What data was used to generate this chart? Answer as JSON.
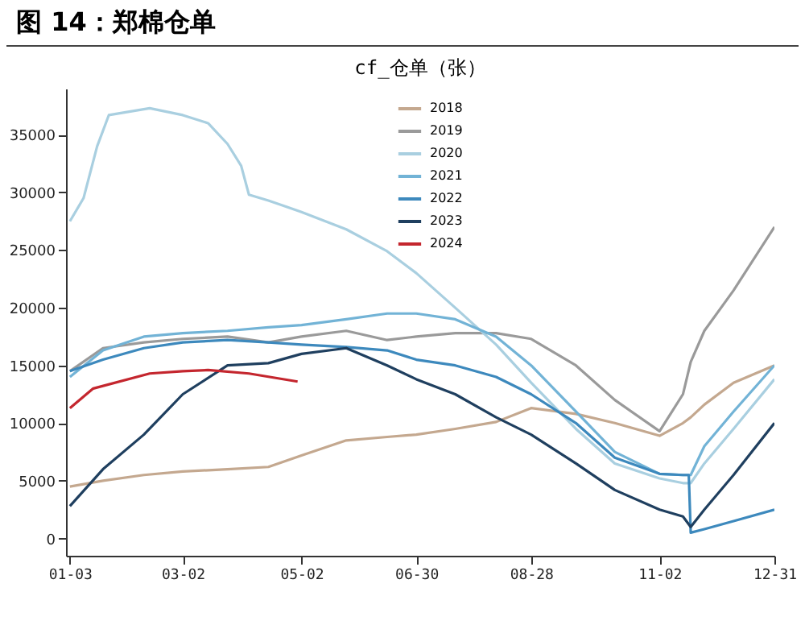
{
  "chart_data": {
    "type": "line",
    "title": "图 14：郑棉仓单",
    "subtitle": "cf_仓单（张）",
    "x": [
      "--01-03",
      "--01-20",
      "--02-10",
      "--03-02",
      "--03-25",
      "--04-15",
      "--05-02",
      "--05-25",
      "--06-15",
      "--06-30",
      "--07-20",
      "--08-10",
      "--08-28",
      "--09-20",
      "--10-10",
      "--11-02",
      "--11-14",
      "--11-18",
      "--11-25",
      "--12-10",
      "--12-31"
    ],
    "series": [
      {
        "name": "2018",
        "color": "#c4a88f",
        "values": [
          4500,
          5000,
          5500,
          5800,
          6000,
          6200,
          7200,
          8500,
          8800,
          9000,
          9500,
          10100,
          11300,
          10800,
          10000,
          8900,
          10000,
          10500,
          11600,
          13500,
          15000
        ]
      },
      {
        "name": "2019",
        "color": "#9a9a9a",
        "values": [
          14500,
          16500,
          17000,
          17300,
          17500,
          17000,
          17500,
          18000,
          17200,
          17500,
          17800,
          17800,
          17300,
          15000,
          12000,
          9300,
          12500,
          15300,
          18000,
          21500,
          27000
        ]
      },
      {
        "name": "2020",
        "color": "#a9cfe0",
        "x": [
          "--01-03",
          "--01-10",
          "--01-17",
          "--01-23",
          "--02-13",
          "--03-02",
          "--03-15",
          "--03-25",
          "--04-01",
          "--04-05",
          "--04-15",
          "--05-02",
          "--05-25",
          "--06-15",
          "--06-30",
          "--07-20",
          "--08-10",
          "--08-28",
          "--09-20",
          "--10-10",
          "--11-02",
          "--11-14",
          "--11-18",
          "--11-25",
          "--12-10",
          "--12-31"
        ],
        "values": [
          27500,
          29500,
          34000,
          36700,
          37300,
          36700,
          36000,
          34200,
          32300,
          29800,
          29300,
          28300,
          26800,
          24900,
          23000,
          20000,
          16800,
          13500,
          9500,
          6500,
          5200,
          4800,
          4800,
          6500,
          9500,
          13800
        ]
      },
      {
        "name": "2021",
        "color": "#72b3d6",
        "values": [
          14000,
          16300,
          17500,
          17800,
          18000,
          18300,
          18500,
          19000,
          19500,
          19500,
          19000,
          17500,
          15000,
          11000,
          7500,
          5600,
          5500,
          5500,
          8000,
          11000,
          15000
        ]
      },
      {
        "name": "2022",
        "color": "#3d89bd",
        "x": [
          "--01-03",
          "--01-20",
          "--02-10",
          "--03-02",
          "--03-25",
          "--04-15",
          "--05-02",
          "--05-25",
          "--06-15",
          "--06-30",
          "--07-20",
          "--08-10",
          "--08-28",
          "--09-20",
          "--10-10",
          "--11-02",
          "--11-14",
          "--11-17",
          "--11-18",
          "--11-25",
          "--12-10",
          "--12-31"
        ],
        "values": [
          14500,
          15500,
          16500,
          17000,
          17200,
          17000,
          16800,
          16600,
          16300,
          15500,
          15000,
          14000,
          12500,
          10000,
          7000,
          5600,
          5500,
          5500,
          500,
          800,
          1500,
          2500
        ]
      },
      {
        "name": "2023",
        "color": "#1f3f5f",
        "values": [
          2800,
          6000,
          9000,
          12500,
          15000,
          15200,
          16000,
          16500,
          15000,
          13800,
          12500,
          10500,
          9000,
          6500,
          4200,
          2500,
          1900,
          1000,
          2500,
          5500,
          10000
        ]
      },
      {
        "name": "2024",
        "color": "#c4262e",
        "x": [
          "--01-03",
          "--01-15",
          "--02-13",
          "--03-02",
          "--03-15",
          "--04-05",
          "--04-30"
        ],
        "values": [
          11300,
          13000,
          14300,
          14500,
          14600,
          14300,
          13600
        ]
      }
    ],
    "xlim": [
      "--01-01",
      "--12-31"
    ],
    "xticks": [
      {
        "value": "--01-03",
        "label": "01-03"
      },
      {
        "value": "--03-02",
        "label": "03-02"
      },
      {
        "value": "--05-02",
        "label": "05-02"
      },
      {
        "value": "--06-30",
        "label": "06-30"
      },
      {
        "value": "--08-28",
        "label": "08-28"
      },
      {
        "value": "--11-02",
        "label": "11-02"
      },
      {
        "value": "--12-31",
        "label": "12-31"
      }
    ],
    "ylim": [
      -1500,
      39000
    ],
    "yticks": [
      0,
      5000,
      10000,
      15000,
      20000,
      25000,
      30000,
      35000
    ],
    "grid": false,
    "legend": "top",
    "line_style": "solid"
  }
}
